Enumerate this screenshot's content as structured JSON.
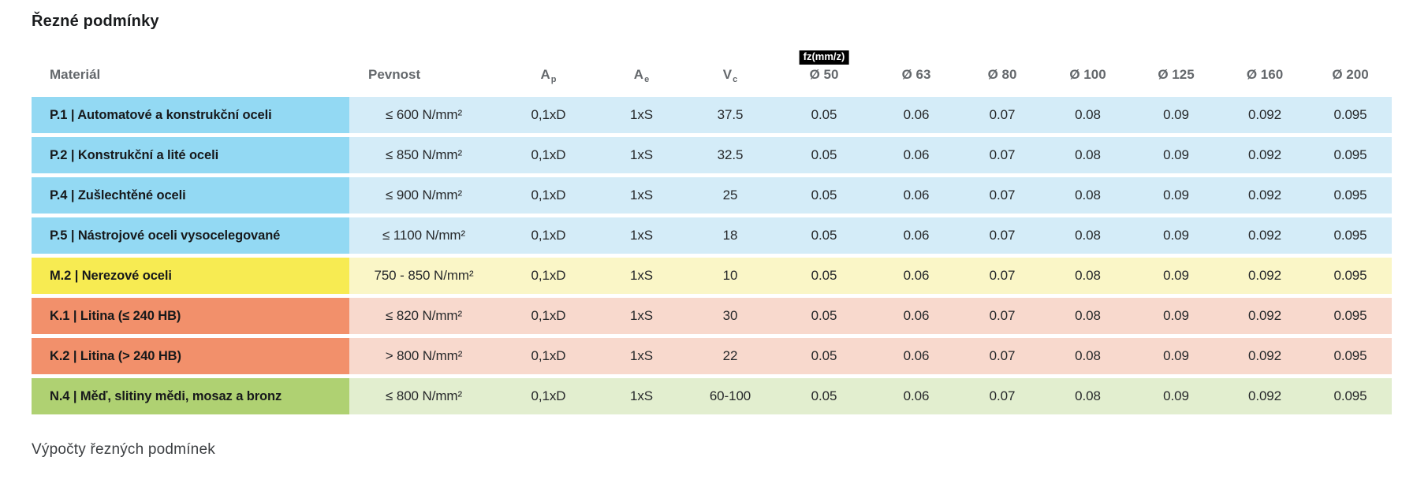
{
  "page": {
    "title": "Řezné podmínky",
    "footer": "Výpočty řezných podmínek"
  },
  "colors": {
    "blue_strong": "#93D9F3",
    "blue_light": "#D4ECF8",
    "yellow_strong": "#F7EB52",
    "yellow_light": "#FAF6C7",
    "orange_strong": "#F2906B",
    "orange_light": "#F8D9CD",
    "green_strong": "#AFD172",
    "green_light": "#E2EECF",
    "badge_bg": "#000000",
    "badge_text": "#FFFFFF",
    "header_text": "#64686C"
  },
  "table": {
    "columns": [
      {
        "label": "Materiál"
      },
      {
        "label": "Pevnost"
      },
      {
        "label": "A",
        "sub": "p"
      },
      {
        "label": "A",
        "sub": "e"
      },
      {
        "label": "V",
        "sub": "c"
      },
      {
        "label": "Ø 50",
        "badge": "fz(mm/z)"
      },
      {
        "label": "Ø 63"
      },
      {
        "label": "Ø 80"
      },
      {
        "label": "Ø 100"
      },
      {
        "label": "Ø 125"
      },
      {
        "label": "Ø 160"
      },
      {
        "label": "Ø 200"
      }
    ],
    "rows": [
      {
        "material": "P.1 | Automatové a konstrukční oceli",
        "pevnost": "≤ 600 N/mm²",
        "ap": "0,1xD",
        "ae": "1xS",
        "vc": "37.5",
        "fz": [
          "0.05",
          "0.06",
          "0.07",
          "0.08",
          "0.09",
          "0.092",
          "0.095"
        ],
        "colors": {
          "strong": "#93D9F3",
          "light": "#D4ECF8"
        }
      },
      {
        "material": "P.2 | Konstrukční a lité oceli",
        "pevnost": "≤ 850 N/mm²",
        "ap": "0,1xD",
        "ae": "1xS",
        "vc": "32.5",
        "fz": [
          "0.05",
          "0.06",
          "0.07",
          "0.08",
          "0.09",
          "0.092",
          "0.095"
        ],
        "colors": {
          "strong": "#93D9F3",
          "light": "#D4ECF8"
        }
      },
      {
        "material": "P.4 | Zušlechtěné oceli",
        "pevnost": "≤ 900 N/mm²",
        "ap": "0,1xD",
        "ae": "1xS",
        "vc": "25",
        "fz": [
          "0.05",
          "0.06",
          "0.07",
          "0.08",
          "0.09",
          "0.092",
          "0.095"
        ],
        "colors": {
          "strong": "#93D9F3",
          "light": "#D4ECF8"
        }
      },
      {
        "material": "P.5 | Nástrojové oceli vysocelegované",
        "pevnost": "≤ 1100 N/mm²",
        "ap": "0,1xD",
        "ae": "1xS",
        "vc": "18",
        "fz": [
          "0.05",
          "0.06",
          "0.07",
          "0.08",
          "0.09",
          "0.092",
          "0.095"
        ],
        "colors": {
          "strong": "#93D9F3",
          "light": "#D4ECF8"
        }
      },
      {
        "material": "M.2 | Nerezové oceli",
        "pevnost": "750 - 850 N/mm²",
        "ap": "0,1xD",
        "ae": "1xS",
        "vc": "10",
        "fz": [
          "0.05",
          "0.06",
          "0.07",
          "0.08",
          "0.09",
          "0.092",
          "0.095"
        ],
        "colors": {
          "strong": "#F7EB52",
          "light": "#FAF6C7"
        }
      },
      {
        "material": "K.1 | Litina (≤ 240 HB)",
        "pevnost": "≤ 820 N/mm²",
        "ap": "0,1xD",
        "ae": "1xS",
        "vc": "30",
        "fz": [
          "0.05",
          "0.06",
          "0.07",
          "0.08",
          "0.09",
          "0.092",
          "0.095"
        ],
        "colors": {
          "strong": "#F2906B",
          "light": "#F8D9CD"
        }
      },
      {
        "material": "K.2 | Litina (> 240 HB)",
        "pevnost": "> 800 N/mm²",
        "ap": "0,1xD",
        "ae": "1xS",
        "vc": "22",
        "fz": [
          "0.05",
          "0.06",
          "0.07",
          "0.08",
          "0.09",
          "0.092",
          "0.095"
        ],
        "colors": {
          "strong": "#F2906B",
          "light": "#F8D9CD"
        }
      },
      {
        "material": "N.4 | Měď, slitiny mědi, mosaz a bronz",
        "pevnost": "≤ 800 N/mm²",
        "ap": "0,1xD",
        "ae": "1xS",
        "vc": "60-100",
        "fz": [
          "0.05",
          "0.06",
          "0.07",
          "0.08",
          "0.09",
          "0.092",
          "0.095"
        ],
        "colors": {
          "strong": "#AFD172",
          "light": "#E2EECF"
        }
      }
    ]
  }
}
